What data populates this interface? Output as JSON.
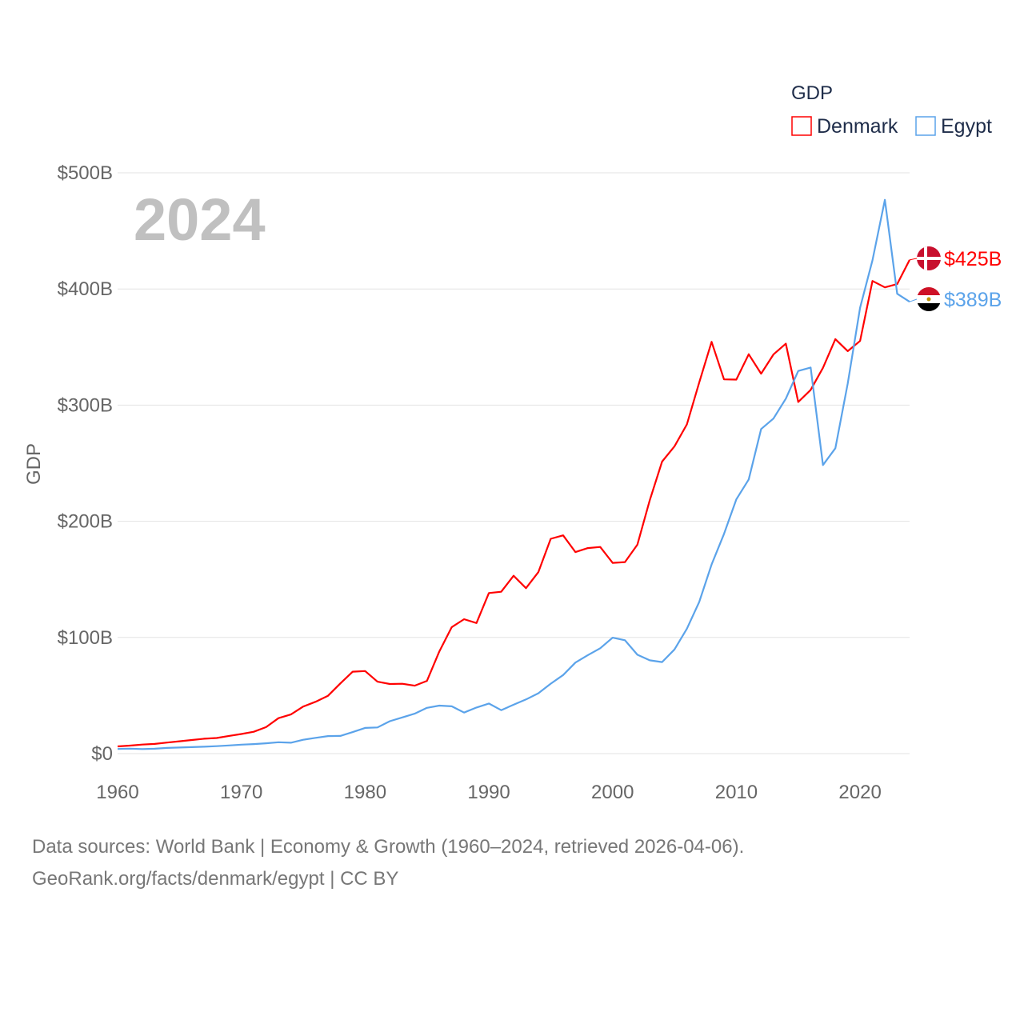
{
  "chart_data": {
    "type": "line",
    "ylabel": "GDP",
    "year_label": "2024",
    "legend": {
      "title": "GDP",
      "placement": "top-right"
    },
    "xlim": [
      1960,
      2024
    ],
    "ylim": [
      0,
      500
    ],
    "unit": "billion USD",
    "x_ticks": [
      "1960",
      "1970",
      "1980",
      "1990",
      "2000",
      "2010",
      "2020"
    ],
    "y_ticks": [
      {
        "value": 0,
        "label": "$0"
      },
      {
        "value": 100,
        "label": "$100B"
      },
      {
        "value": 200,
        "label": "$200B"
      },
      {
        "value": 300,
        "label": "$300B"
      },
      {
        "value": 400,
        "label": "$400B"
      },
      {
        "value": 500,
        "label": "$500B"
      }
    ],
    "grid": true,
    "x": [
      1960,
      1961,
      1962,
      1963,
      1964,
      1965,
      1966,
      1967,
      1968,
      1969,
      1970,
      1971,
      1972,
      1973,
      1974,
      1975,
      1976,
      1977,
      1978,
      1979,
      1980,
      1981,
      1982,
      1983,
      1984,
      1985,
      1986,
      1987,
      1988,
      1989,
      1990,
      1991,
      1992,
      1993,
      1994,
      1995,
      1996,
      1997,
      1998,
      1999,
      2000,
      2001,
      2002,
      2003,
      2004,
      2005,
      2006,
      2007,
      2008,
      2009,
      2010,
      2011,
      2012,
      2013,
      2014,
      2015,
      2016,
      2017,
      2018,
      2019,
      2020,
      2021,
      2022,
      2023,
      2024
    ],
    "series": [
      {
        "name": "Denmark",
        "color": "#ff0000",
        "end_label": "$425B",
        "values": [
          6.2,
          6.9,
          7.8,
          8.3,
          9.5,
          10.6,
          11.7,
          12.8,
          13.4,
          15.2,
          16.9,
          18.8,
          22.8,
          30.5,
          33.7,
          40.5,
          44.6,
          49.8,
          60.4,
          70.5,
          71.1,
          61.9,
          59.9,
          60.1,
          58.5,
          62.6,
          88,
          108.9,
          115.7,
          112.4,
          138.2,
          139.3,
          153.1,
          142.4,
          156.2,
          184.9,
          187.9,
          173.5,
          176.9,
          177.9,
          164.2,
          164.9,
          179.8,
          218.1,
          251.4,
          264.5,
          283.4,
          319.4,
          354.5,
          322.2,
          322,
          343.8,
          327.1,
          343.6,
          352.9,
          302.7,
          313.1,
          332.1,
          356.8,
          346.5,
          355.2,
          406.9,
          401.4,
          404.2,
          425
        ]
      },
      {
        "name": "Egypt",
        "color": "#5ba3ea",
        "end_label": "$389B",
        "values": [
          4,
          4.3,
          3.9,
          4.2,
          4.9,
          5.2,
          5.6,
          5.9,
          6.4,
          7.0,
          7.7,
          8.2,
          8.9,
          9.8,
          9.4,
          11.9,
          13.6,
          15.1,
          15.2,
          18.5,
          22.1,
          22.5,
          27.9,
          31.1,
          34.4,
          39.4,
          41.3,
          40.7,
          35.3,
          39.7,
          43.1,
          37.4,
          42.1,
          46.6,
          51.9,
          60.2,
          67.6,
          78.4,
          84.8,
          90.7,
          99.8,
          97.6,
          85.1,
          80.3,
          78.8,
          89.7,
          107.5,
          130.5,
          162.8,
          189.1,
          218.9,
          236,
          279.4,
          288.4,
          305.6,
          329.4,
          332.4,
          248.4,
          262.9,
          318.7,
          383.8,
          424.7,
          476.7,
          395.9,
          389
        ]
      }
    ]
  },
  "footer": {
    "line1": "Data sources: World Bank | Economy & Growth (1960–2024, retrieved 2026-04-06).",
    "line2": "GeoRank.org/facts/denmark/egypt | CC BY"
  }
}
